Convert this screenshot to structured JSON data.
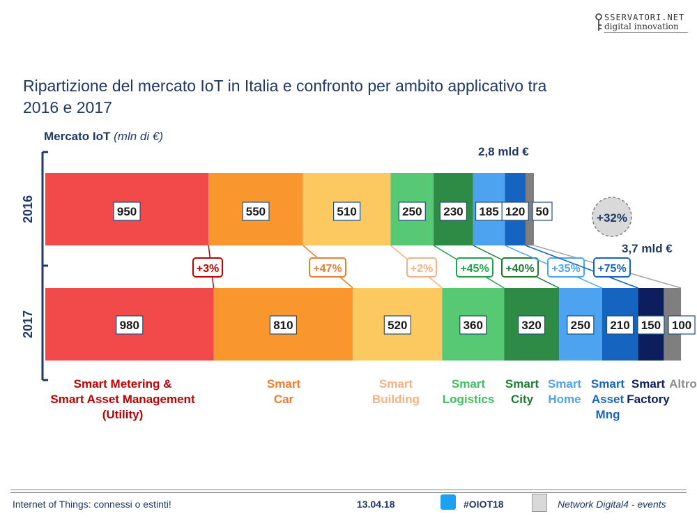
{
  "logo": {
    "top": "SSERVATORI.NET",
    "bottom": "digital innovation"
  },
  "title": "Ripartizione del mercato IoT in Italia e confronto per ambito applicativo tra 2016 e 2017",
  "subtitle": {
    "main": "Mercato IoT",
    "unit": "(mln di €)"
  },
  "chart_data": {
    "type": "bar",
    "orientation": "horizontal-stacked",
    "categories": [
      "Smart Metering & Smart Asset Management (Utility)",
      "Smart Car",
      "Smart Building",
      "Smart Logistics",
      "Smart City",
      "Smart Home",
      "Smart Asset Mng",
      "Smart Factory",
      "Altro"
    ],
    "category_lines": [
      [
        "Smart Metering &",
        "Smart Asset Management",
        "(Utility)"
      ],
      [
        "Smart",
        "Car"
      ],
      [
        "Smart",
        "Building"
      ],
      [
        "Smart",
        "Logistics"
      ],
      [
        "Smart",
        "City"
      ],
      [
        "Smart",
        "Home"
      ],
      [
        "Smart",
        "Asset",
        "Mng"
      ],
      [
        "Smart",
        "Factory"
      ],
      [
        "Altro"
      ]
    ],
    "series": [
      {
        "name": "2016",
        "values": [
          950,
          550,
          510,
          250,
          230,
          185,
          120,
          null,
          50
        ]
      },
      {
        "name": "2017",
        "values": [
          980,
          810,
          520,
          360,
          320,
          250,
          210,
          150,
          100
        ]
      }
    ],
    "value_labels": {
      "2016": [
        "950",
        "550",
        "510",
        "250",
        "230",
        "185",
        "120",
        "50"
      ],
      "2017": [
        "980",
        "810",
        "520",
        "360",
        "320",
        "250",
        "210",
        "150",
        "100"
      ]
    },
    "growth": [
      "+3%",
      "+47%",
      "+2%",
      "+45%",
      "+40%",
      "+35%",
      "+75%"
    ],
    "totals": {
      "2016": "2,8 mld €",
      "2017": "3,7 mld €"
    },
    "total_growth": "+32%",
    "colors": [
      "#f24a4a",
      "#f9962e",
      "#fcc961",
      "#57c873",
      "#2d8b46",
      "#4ea3f0",
      "#1565c0",
      "#0c1f5c",
      "#7f7f7f"
    ],
    "label_colors": [
      "#c00000",
      "#ed7d31",
      "#f4b183",
      "#3fbf5f",
      "#1e7b34",
      "#4ea3f0",
      "#1565c0",
      "#0c1f5c",
      "#8c8c8c"
    ],
    "growth_colors": [
      "#c00000",
      "#ed7d31",
      "#f4b183",
      "#1ea34b",
      "#1e7b34",
      "#4ea3f0",
      "#1565c0"
    ],
    "title": "Ripartizione del mercato IoT in Italia e confronto per ambito applicativo tra 2016 e 2017",
    "ylabel": "Mercato IoT (mln di €)"
  },
  "footer": {
    "left": "Internet of Things: connessi o estinti!",
    "date": "13.04.18",
    "hashtag": "#OIOT18",
    "right": "Network Digital4 - events"
  }
}
